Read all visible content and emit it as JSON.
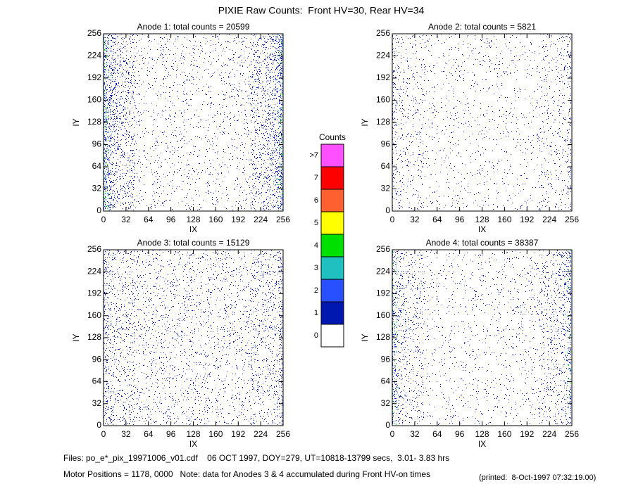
{
  "title": "PIXIE Raw Counts:  Front HV=30, Rear HV=34",
  "chart_data": [
    {
      "type": "heatmap",
      "title": "Anode 1: total counts = 20599",
      "xlabel": "IX",
      "ylabel": "IY",
      "xlim": [
        0,
        256
      ],
      "ylim": [
        0,
        256
      ],
      "xticks": [
        0,
        32,
        64,
        96,
        128,
        160,
        192,
        224,
        256
      ],
      "yticks": [
        0,
        32,
        64,
        96,
        128,
        160,
        192,
        224,
        256
      ]
    },
    {
      "type": "heatmap",
      "title": "Anode 2: total counts = 5821",
      "xlabel": "IX",
      "ylabel": "IY",
      "xlim": [
        0,
        256
      ],
      "ylim": [
        0,
        256
      ],
      "xticks": [
        0,
        32,
        64,
        96,
        128,
        160,
        192,
        224,
        256
      ],
      "yticks": [
        0,
        32,
        64,
        96,
        128,
        160,
        192,
        224,
        256
      ]
    },
    {
      "type": "heatmap",
      "title": "Anode 3: total counts = 15129",
      "xlabel": "IX",
      "ylabel": "IY",
      "xlim": [
        0,
        256
      ],
      "ylim": [
        0,
        256
      ],
      "xticks": [
        0,
        32,
        64,
        96,
        128,
        160,
        192,
        224,
        256
      ],
      "yticks": [
        0,
        32,
        64,
        96,
        128,
        160,
        192,
        224,
        256
      ]
    },
    {
      "type": "heatmap",
      "title": "Anode 4: total counts = 38387",
      "xlabel": "IX",
      "ylabel": "IY",
      "xlim": [
        0,
        256
      ],
      "ylim": [
        0,
        256
      ],
      "xticks": [
        0,
        32,
        64,
        96,
        128,
        160,
        192,
        224,
        256
      ],
      "yticks": [
        0,
        32,
        64,
        96,
        128,
        160,
        192,
        224,
        256
      ]
    }
  ],
  "colorbar": {
    "title": "Counts",
    "labels": [
      "0",
      "1",
      "2",
      "3",
      "4",
      "5",
      "6",
      "7",
      ">7"
    ],
    "colors": [
      "#ffffff",
      "#0018b0",
      "#2850ff",
      "#20c0c0",
      "#00e000",
      "#ffff00",
      "#ff6030",
      "#ff0000",
      "#ff50ff"
    ]
  },
  "footer": {
    "files": "Files: po_e*_pix_19971006_v01.cdf    06 OCT 1997, DOY=279, UT=10818-13799 secs,  3.01- 3.83 hrs",
    "motor": "Motor Positions = 1178, 0000   Note: data for Anodes 3 & 4 accumulated during Front HV-on times",
    "printed": "(printed:  8-Oct-1997 07:32:19.00)"
  }
}
